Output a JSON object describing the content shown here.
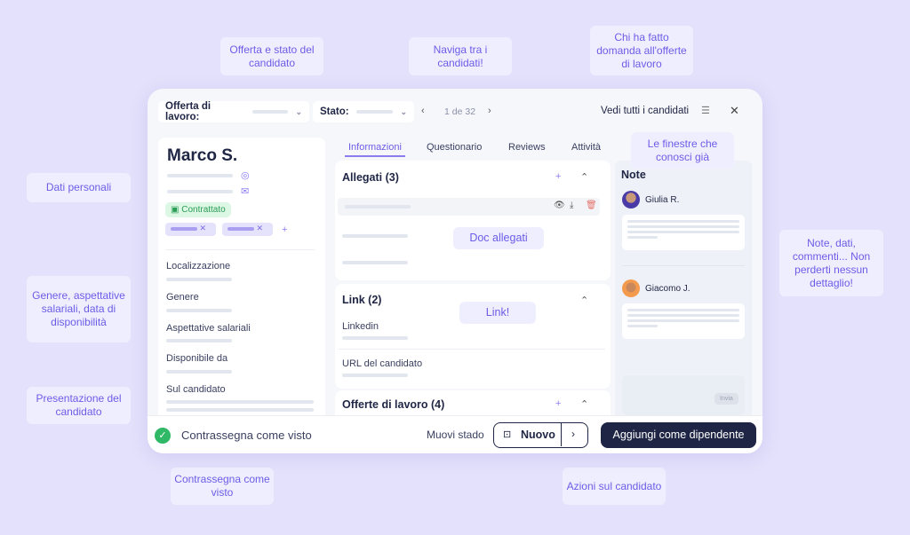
{
  "callouts": {
    "offer_state": "Offerta e stato del candidato",
    "navigate": "Naviga tra i candidati!",
    "applicants": "Chi ha fatto domanda all'offerte di lavoro",
    "personal": "Dati personali",
    "gender": "Genere, aspettative salariali, data di disponibilità",
    "presentation": "Presentazione del candidato",
    "notes": "Note, dati, commenti... Non perderti nessun dettaglio!",
    "mark_seen": "Contrassegna come visto",
    "actions": "Azioni sul candidato",
    "windows": "Le finestre che conosci già",
    "docs": "Doc allegati",
    "link": "Link!"
  },
  "header": {
    "offer_label": "Offerta di lavoro:",
    "state_label": "Stato:",
    "pager": "1 de 32",
    "see_all": "Vedi tutti i candidati"
  },
  "candidate": {
    "name": "Marco S.",
    "status": "Contrattato",
    "fields": [
      "Localizzazione",
      "Genere",
      "Aspettative salariali",
      "Disponibile da",
      "Sul candidato"
    ]
  },
  "tabs": [
    "Informazioni",
    "Questionario",
    "Reviews",
    "Attività"
  ],
  "sections": {
    "attachments": "Allegati (3)",
    "links": "Link (2)",
    "link_items": [
      "Linkedin",
      "URL del candidato"
    ],
    "offers": "Offerte di lavoro (4)"
  },
  "notes": {
    "title": "Note",
    "authors": [
      "Giulia R.",
      "Giacomo J."
    ],
    "send": "Invia"
  },
  "footer": {
    "mark_seen": "Contrassegna come visto",
    "move_stage": "Muovi stado",
    "stage": "Nuovo",
    "add_employee": "Aggiungi come dipendente"
  },
  "colors": {
    "accent": "#6c5ce7",
    "dark": "#1f2544",
    "success": "#2fb866",
    "background": "#e3e1fb"
  }
}
